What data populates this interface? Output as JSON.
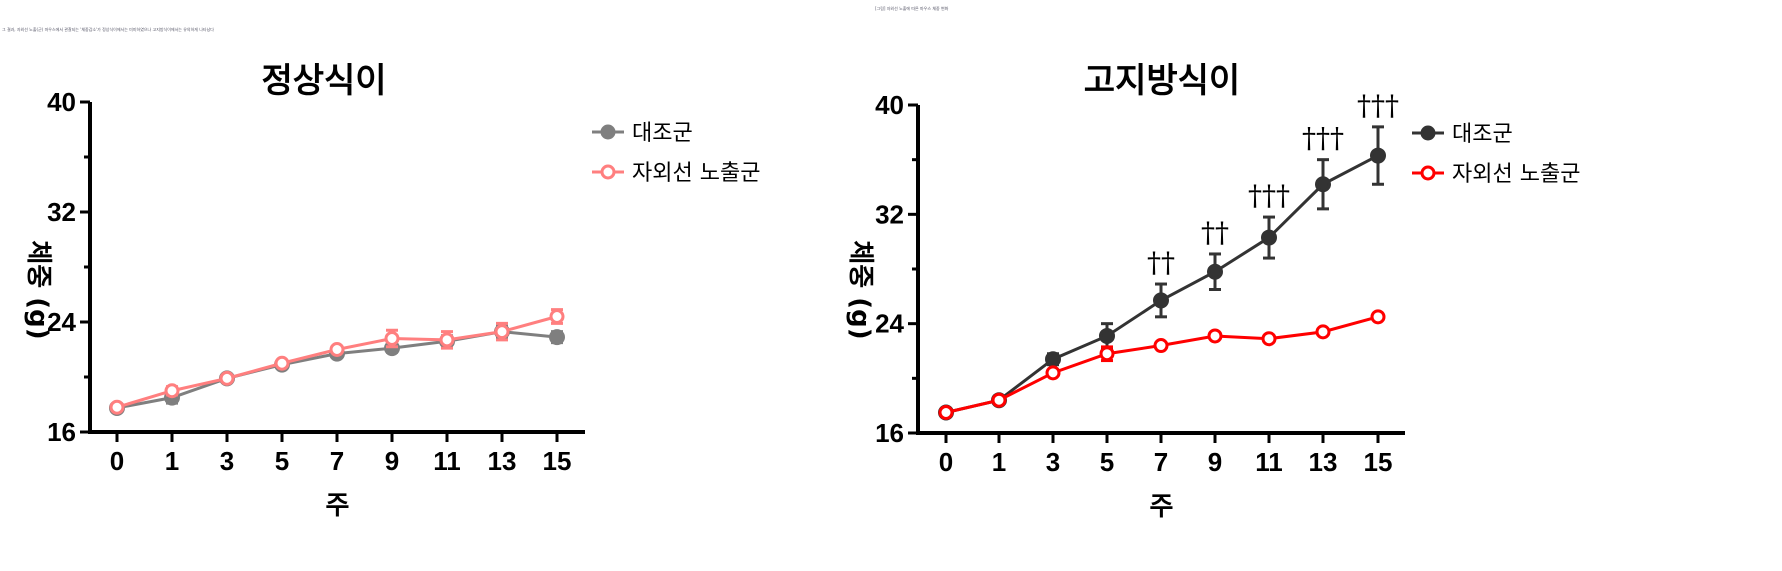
{
  "caption_left": "그 결과, 자외선 노출(군) 마우스에서 관찰되는 '체중감소'가 정상식이에서는 미미하였으나 고지방식이에서는 유의하게 나타났다",
  "caption_center": "[그림] 자외선 노출에 따른 마우스 체중 변화",
  "chart_data": [
    {
      "type": "line",
      "title": "정상식이",
      "xlabel": "주",
      "ylabel": "체중 (g)",
      "x": [
        "0",
        "1",
        "3",
        "5",
        "7",
        "9",
        "11",
        "13",
        "15"
      ],
      "ylim": [
        16,
        40
      ],
      "yticks": [
        "16",
        "24",
        "32",
        "40"
      ],
      "legend_position": "top-right",
      "series": [
        {
          "name": "대조군",
          "color": "#7f7f7f",
          "marker": "filled-circle",
          "values": [
            17.75,
            18.5,
            19.9,
            20.9,
            21.7,
            22.1,
            22.6,
            23.3,
            22.9
          ],
          "errors": [
            0.2,
            0.4,
            0.2,
            0.2,
            0.2,
            0.3,
            0.4,
            0.4,
            0.4
          ]
        },
        {
          "name": "자외선 노출군",
          "color": "#ff7f7f",
          "marker": "open-circle",
          "values": [
            17.8,
            19.0,
            19.9,
            21.0,
            22.0,
            22.8,
            22.7,
            23.3,
            24.4
          ],
          "errors": [
            0.2,
            0.3,
            0.2,
            0.2,
            0.2,
            0.6,
            0.6,
            0.6,
            0.5
          ]
        }
      ],
      "annotations": []
    },
    {
      "type": "line",
      "title": "고지방식이",
      "xlabel": "주",
      "ylabel": "체중 (g)",
      "x": [
        "0",
        "1",
        "3",
        "5",
        "7",
        "9",
        "11",
        "13",
        "15"
      ],
      "ylim": [
        16,
        40
      ],
      "yticks": [
        "16",
        "24",
        "32",
        "40"
      ],
      "legend_position": "top-right",
      "series": [
        {
          "name": "대조군",
          "color": "#333333",
          "marker": "filled-circle",
          "values": [
            17.5,
            18.4,
            21.4,
            23.1,
            25.7,
            27.8,
            30.3,
            34.2,
            36.3
          ],
          "errors": [
            0.2,
            0.2,
            0.4,
            0.9,
            1.2,
            1.3,
            1.5,
            1.8,
            2.1
          ]
        },
        {
          "name": "자외선 노출군",
          "color": "#ff0000",
          "marker": "open-circle",
          "values": [
            17.5,
            18.4,
            20.4,
            21.8,
            22.4,
            23.1,
            22.9,
            23.4,
            24.5
          ],
          "errors": [
            0.2,
            0.2,
            0.2,
            0.5,
            0.2,
            0.2,
            0.2,
            0.2,
            0.2
          ]
        }
      ],
      "annotations": [
        {
          "x": "7",
          "text": "††"
        },
        {
          "x": "9",
          "text": "††"
        },
        {
          "x": "11",
          "text": "†††"
        },
        {
          "x": "13",
          "text": "†††"
        },
        {
          "x": "15",
          "text": "†††"
        }
      ]
    }
  ]
}
